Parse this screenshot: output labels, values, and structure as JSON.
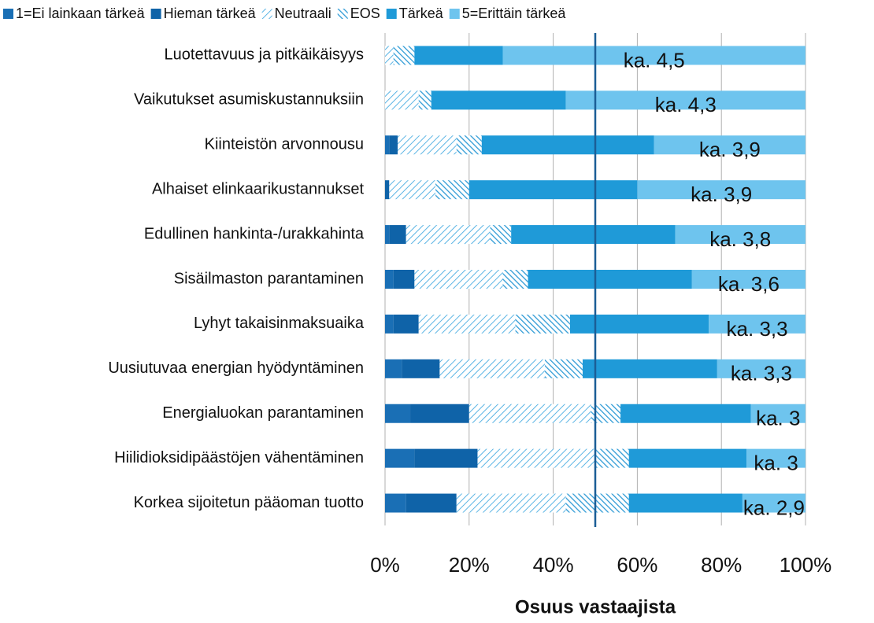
{
  "chart_data": {
    "type": "stacked_barh",
    "xlabel": "Osuus vastaajista",
    "categories": [
      "Luotettavuus ja pitkäikäisyys",
      "Vaikutukset asumiskustannuksiin",
      "Kiinteistön arvonnousu",
      "Alhaiset elinkaarikustannukset",
      "Edullinen hankinta-/urakkahinta",
      "Sisäilmaston parantaminen",
      "Lyhyt takaisinmaksuaika",
      "Uusiutuvaa energian hyödyntäminen",
      "Energialuokan parantaminen",
      "Hiilidioksidipäästöjen vähentäminen",
      "Korkea sijoitetun pääoman tuotto"
    ],
    "series": [
      {
        "name": "1=Ei lainkaan tärkeä",
        "color": "#1a6fb5",
        "values": [
          0,
          0,
          1,
          0,
          1,
          2,
          2,
          4,
          6,
          7,
          5
        ]
      },
      {
        "name": "Hieman tärkeä",
        "color": "#0f63a8",
        "values": [
          0,
          0,
          2,
          1,
          4,
          5,
          6,
          9,
          14,
          15,
          12
        ]
      },
      {
        "name": "Neutraali",
        "color": "#5ab4e4",
        "hatch": "forward",
        "values": [
          2,
          8,
          14,
          11,
          20,
          21,
          23,
          25,
          29,
          28,
          26
        ]
      },
      {
        "name": "EOS",
        "color": "#2f9bd6",
        "hatch": "back",
        "values": [
          5,
          3,
          6,
          8,
          5,
          6,
          13,
          9,
          7,
          8,
          15
        ]
      },
      {
        "name": "Tärkeä",
        "color": "#1f9ad8",
        "values": [
          21,
          32,
          41,
          40,
          39,
          39,
          33,
          32,
          31,
          28,
          27
        ]
      },
      {
        "name": "5=Erittäin tärkeä",
        "color": "#6ec4ee",
        "values": [
          72,
          57,
          36,
          40,
          31,
          27,
          23,
          21,
          13,
          14,
          15
        ]
      }
    ],
    "annotations": [
      "ka. 4,5",
      "ka. 4,3",
      "ka. 3,9",
      "ka. 3,9",
      "ka. 3,8",
      "ka. 3,6",
      "ka. 3,3",
      "ka. 3,3",
      "ka. 3",
      "ka. 3",
      "ka. 2,9"
    ],
    "reference_line": {
      "value": 50,
      "color": "#1b5e96"
    },
    "xlim": [
      0,
      100
    ],
    "xticks": [
      {
        "value": 0,
        "label": "0%"
      },
      {
        "value": 20,
        "label": "20%"
      },
      {
        "value": 40,
        "label": "40%"
      },
      {
        "value": 60,
        "label": "60%"
      },
      {
        "value": 80,
        "label": "80%"
      },
      {
        "value": 100,
        "label": "100%"
      }
    ],
    "grid": true,
    "legend": "top"
  }
}
